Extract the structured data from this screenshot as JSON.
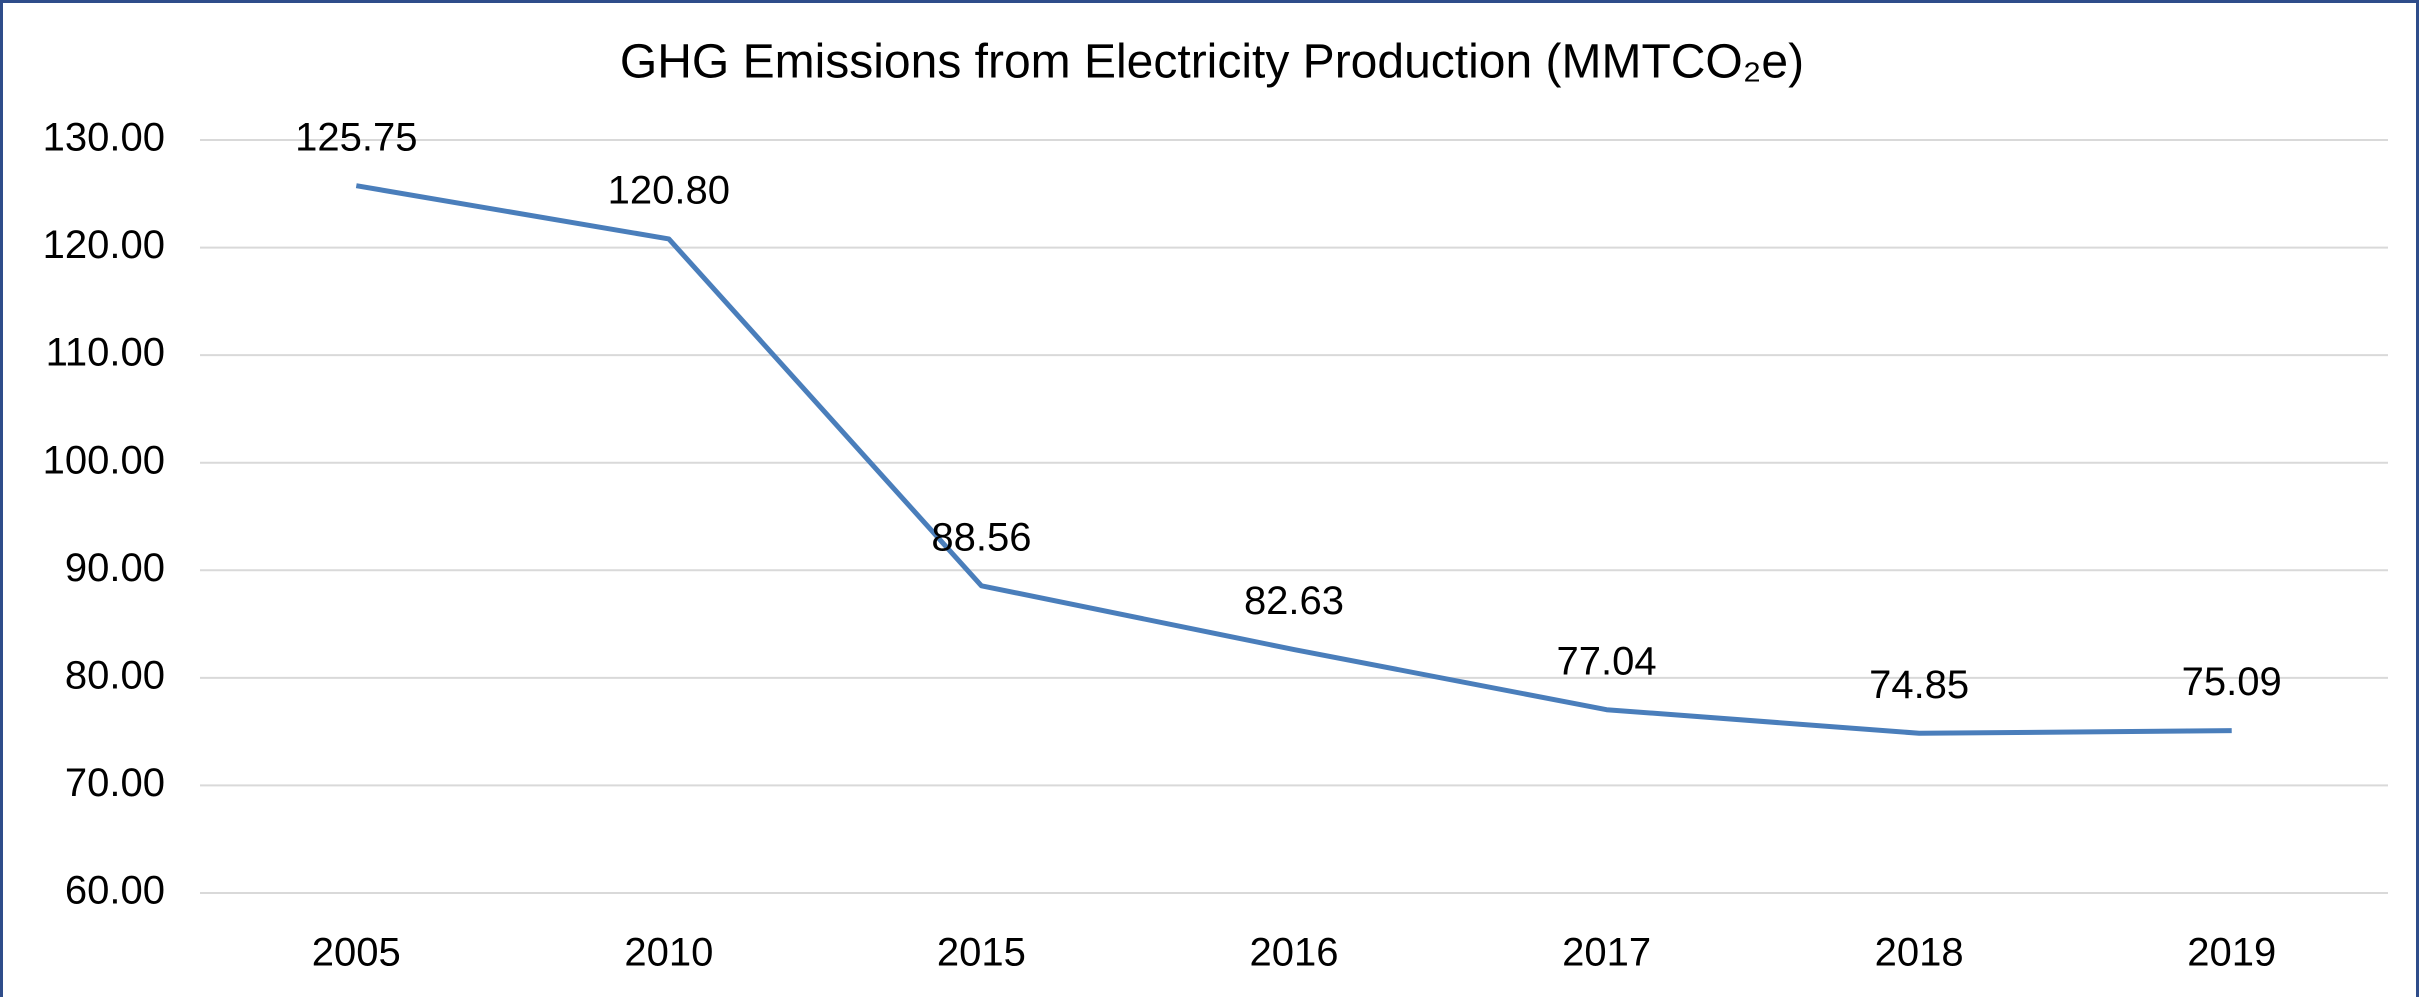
{
  "chart_data": {
    "type": "line",
    "title": "GHG Emissions from Electricity Production (MMTCO₂e)",
    "categories": [
      "2005",
      "2010",
      "2015",
      "2016",
      "2017",
      "2018",
      "2019"
    ],
    "values": [
      125.75,
      120.8,
      88.56,
      82.63,
      77.04,
      74.85,
      75.09
    ],
    "value_labels": [
      "125.75",
      "120.80",
      "88.56",
      "82.63",
      "77.04",
      "74.85",
      "75.09"
    ],
    "color": "#4a7ebb",
    "ylim": [
      60,
      130
    ],
    "yticks": [
      {
        "value": 60,
        "label": "60.00"
      },
      {
        "value": 70,
        "label": "70.00"
      },
      {
        "value": 80,
        "label": "80.00"
      },
      {
        "value": 90,
        "label": "90.00"
      },
      {
        "value": 100,
        "label": "100.00"
      },
      {
        "value": 110,
        "label": "110.00"
      },
      {
        "value": 120,
        "label": "120.00"
      },
      {
        "value": 130,
        "label": "130.00"
      }
    ],
    "grid": true
  }
}
